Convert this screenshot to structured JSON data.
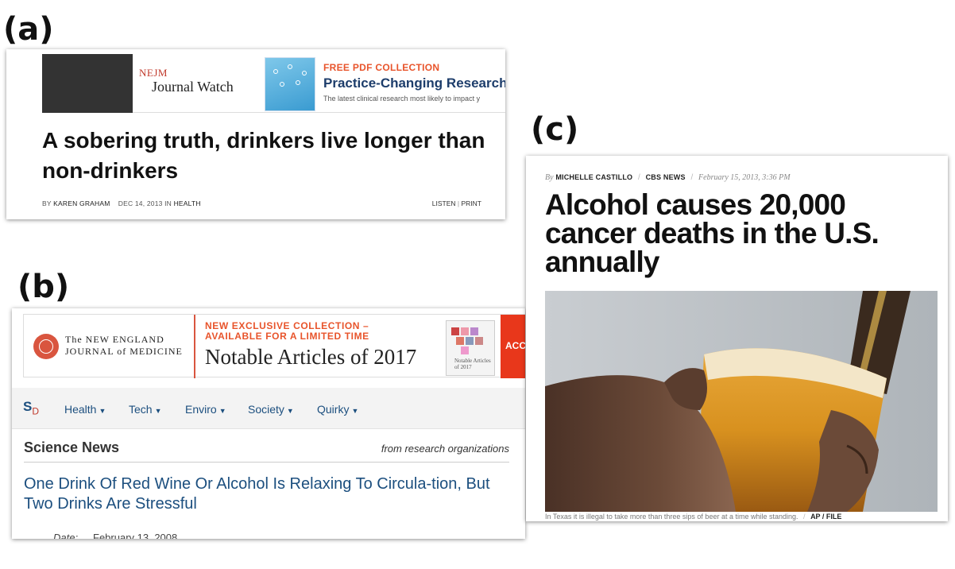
{
  "panels": {
    "a": {
      "label": "(a)",
      "banner": {
        "logo_top": "NEJM",
        "logo_name": "Journal Watch",
        "promo_kicker": "FREE PDF COLLECTION",
        "promo_title": "Practice-Changing Research",
        "promo_sub": "The latest clinical research most likely to impact y"
      },
      "headline": "A sobering truth, drinkers live longer than non-drinkers",
      "byline": {
        "by": "BY",
        "author": "KAREN GRAHAM",
        "date": "DEC 14, 2013",
        "in": "IN",
        "section": "HEALTH"
      },
      "tools": {
        "listen": "LISTEN",
        "sep": "|",
        "print": "PRINT"
      }
    },
    "b": {
      "label": "(b)",
      "banner": {
        "logo_line1": "The NEW ENGLAND",
        "logo_line2": "JOURNAL of MEDICINE",
        "kicker_line1": "NEW EXCLUSIVE COLLECTION –",
        "kicker_line2": "AVAILABLE FOR A LIMITED TIME",
        "promo_title": "Notable Articles of 2017",
        "thumb_text": "Notable Articles of 2017",
        "cta_partial": "ACC"
      },
      "nav": {
        "logo": "S",
        "logo_sub": "D",
        "items": [
          "Health",
          "Tech",
          "Enviro",
          "Society",
          "Quirky"
        ]
      },
      "section_title": "Science News",
      "section_from": "from research organizations",
      "headline": "One Drink Of Red Wine Or Alcohol Is Relaxing To Circula-tion, But Two Drinks Are Stressful",
      "date_label": "Date:",
      "date_value": "February 13, 2008"
    },
    "c": {
      "label": "(c)",
      "byline": {
        "by": "By",
        "author": "MICHELLE CASTILLO",
        "outlet": "CBS NEWS",
        "date": "February 15, 2013, 3:36 PM"
      },
      "headline": "Alcohol causes 20,000 cancer deaths in the U.S. annually",
      "caption": "In Texas it is illegal to take more than three sips of beer at a time while standing.",
      "credit": "AP / FILE"
    }
  },
  "colors": {
    "nejm_orange": "#e8542b",
    "sd_blue": "#1c4f7f",
    "nejm_red": "#d9553f",
    "beer": "#d8911f"
  }
}
